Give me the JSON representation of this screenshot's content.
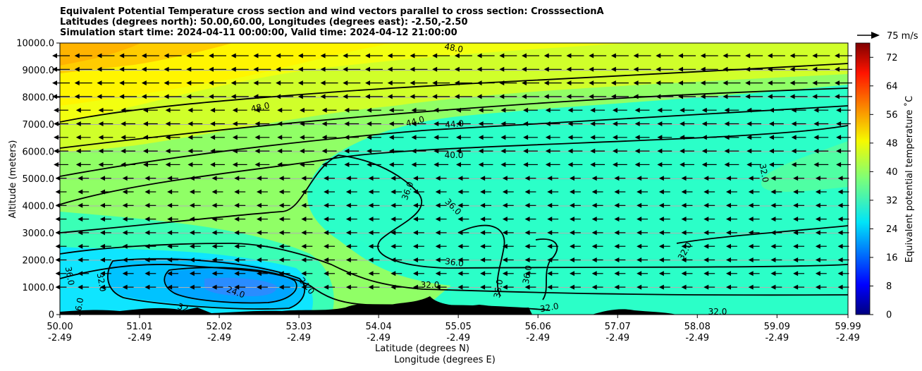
{
  "title_lines": [
    "Equivalent Potential Temperature cross section and wind vectors parallel to cross section: CrosssectionA",
    "Latitudes (degrees north): 50.00,60.00, Longitudes (degrees east): -2.50,-2.50",
    "Simulation start time: 2024-04-11 00:00:00, Valid time: 2024-04-12 21:00:00"
  ],
  "chart_data": {
    "type": "heatmap",
    "ylabel": "Altitude (meters)",
    "xlabel_1": "Latitude (degrees N)",
    "xlabel_2": "Longitude (degrees E)",
    "ylim": [
      0,
      10000
    ],
    "xlim": [
      50.0,
      59.99
    ],
    "y_ticks": [
      "0",
      "1000.0",
      "2000.0",
      "3000.0",
      "4000.0",
      "5000.0",
      "6000.0",
      "7000.0",
      "8000.0",
      "9000.0",
      "10000.0"
    ],
    "x_ticks": [
      {
        "lat": "50.00",
        "lon": "-2.49"
      },
      {
        "lat": "51.01",
        "lon": "-2.49"
      },
      {
        "lat": "52.02",
        "lon": "-2.49"
      },
      {
        "lat": "53.03",
        "lon": "-2.49"
      },
      {
        "lat": "54.04",
        "lon": "-2.49"
      },
      {
        "lat": "55.05",
        "lon": "-2.49"
      },
      {
        "lat": "56.06",
        "lon": "-2.49"
      },
      {
        "lat": "57.07",
        "lon": "-2.49"
      },
      {
        "lat": "58.08",
        "lon": "-2.49"
      },
      {
        "lat": "59.09",
        "lon": "-2.49"
      },
      {
        "lat": "59.99",
        "lon": "-2.49"
      }
    ],
    "grid": "horizontal",
    "colorbar": {
      "label": "Equivalent potential temperature $^\\circ$C",
      "label_display": "Equivalent potential temperature ˚C",
      "ticks": [
        "0",
        "8",
        "16",
        "24",
        "32",
        "40",
        "48",
        "56",
        "64",
        "72"
      ],
      "range": [
        0,
        76
      ],
      "colormap": "jet"
    },
    "wind_key": {
      "label": "75 m/s"
    },
    "contour_levels": [
      "24.0",
      "32.0",
      "36.0",
      "40.0",
      "44.0",
      "48.0"
    ],
    "contour_labels": [
      "48.0",
      "48.0",
      "44.0",
      "44.0",
      "40.0",
      "36.0",
      "36.0",
      "36.0",
      "36.0",
      "36.0",
      "36.0",
      "32.0",
      "32.0",
      "32.0",
      "32.0",
      "32.0",
      "24.0",
      "24.0",
      "32.0",
      "36.0",
      "32"
    ]
  }
}
